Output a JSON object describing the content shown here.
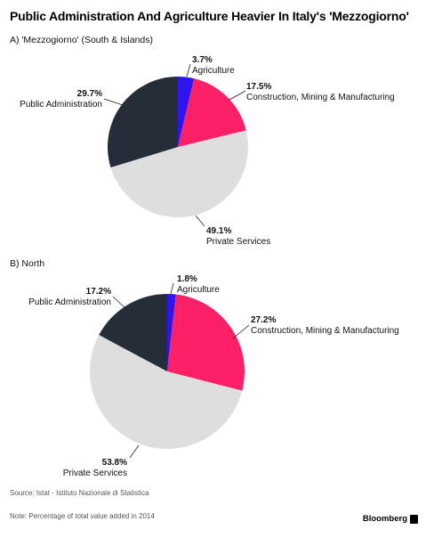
{
  "title": "Public Administration And Agriculture Heavier In Italy's 'Mezzogiorno'",
  "source": "Source: Istat - Istituto Nazionale di Statistica",
  "note": "Note: Percentage of total value added in 2014",
  "brand": "Bloomberg",
  "colors": {
    "Agriculture": "#2f14f0",
    "Construction, Mining & Manufacturing": "#fb1f66",
    "Private Services": "#dedede",
    "Public Administration": "#242d38"
  },
  "chart_data": [
    {
      "type": "pie",
      "title": "A) 'Mezzogiorno' (South & Islands)",
      "unit": "%",
      "slices": [
        {
          "label": "Agriculture",
          "value": 3.7,
          "value_label": "3.7%"
        },
        {
          "label": "Construction, Mining & Manufacturing",
          "value": 17.5,
          "value_label": "17.5%"
        },
        {
          "label": "Private Services",
          "value": 49.1,
          "value_label": "49.1%"
        },
        {
          "label": "Public Administration",
          "value": 29.7,
          "value_label": "29.7%"
        }
      ]
    },
    {
      "type": "pie",
      "title": "B) North",
      "unit": "%",
      "slices": [
        {
          "label": "Agriculture",
          "value": 1.8,
          "value_label": "1.8%"
        },
        {
          "label": "Construction, Mining & Manufacturing",
          "value": 27.2,
          "value_label": "27.2%"
        },
        {
          "label": "Private Services",
          "value": 53.8,
          "value_label": "53.8%"
        },
        {
          "label": "Public Administration",
          "value": 17.2,
          "value_label": "17.2%"
        }
      ]
    }
  ]
}
